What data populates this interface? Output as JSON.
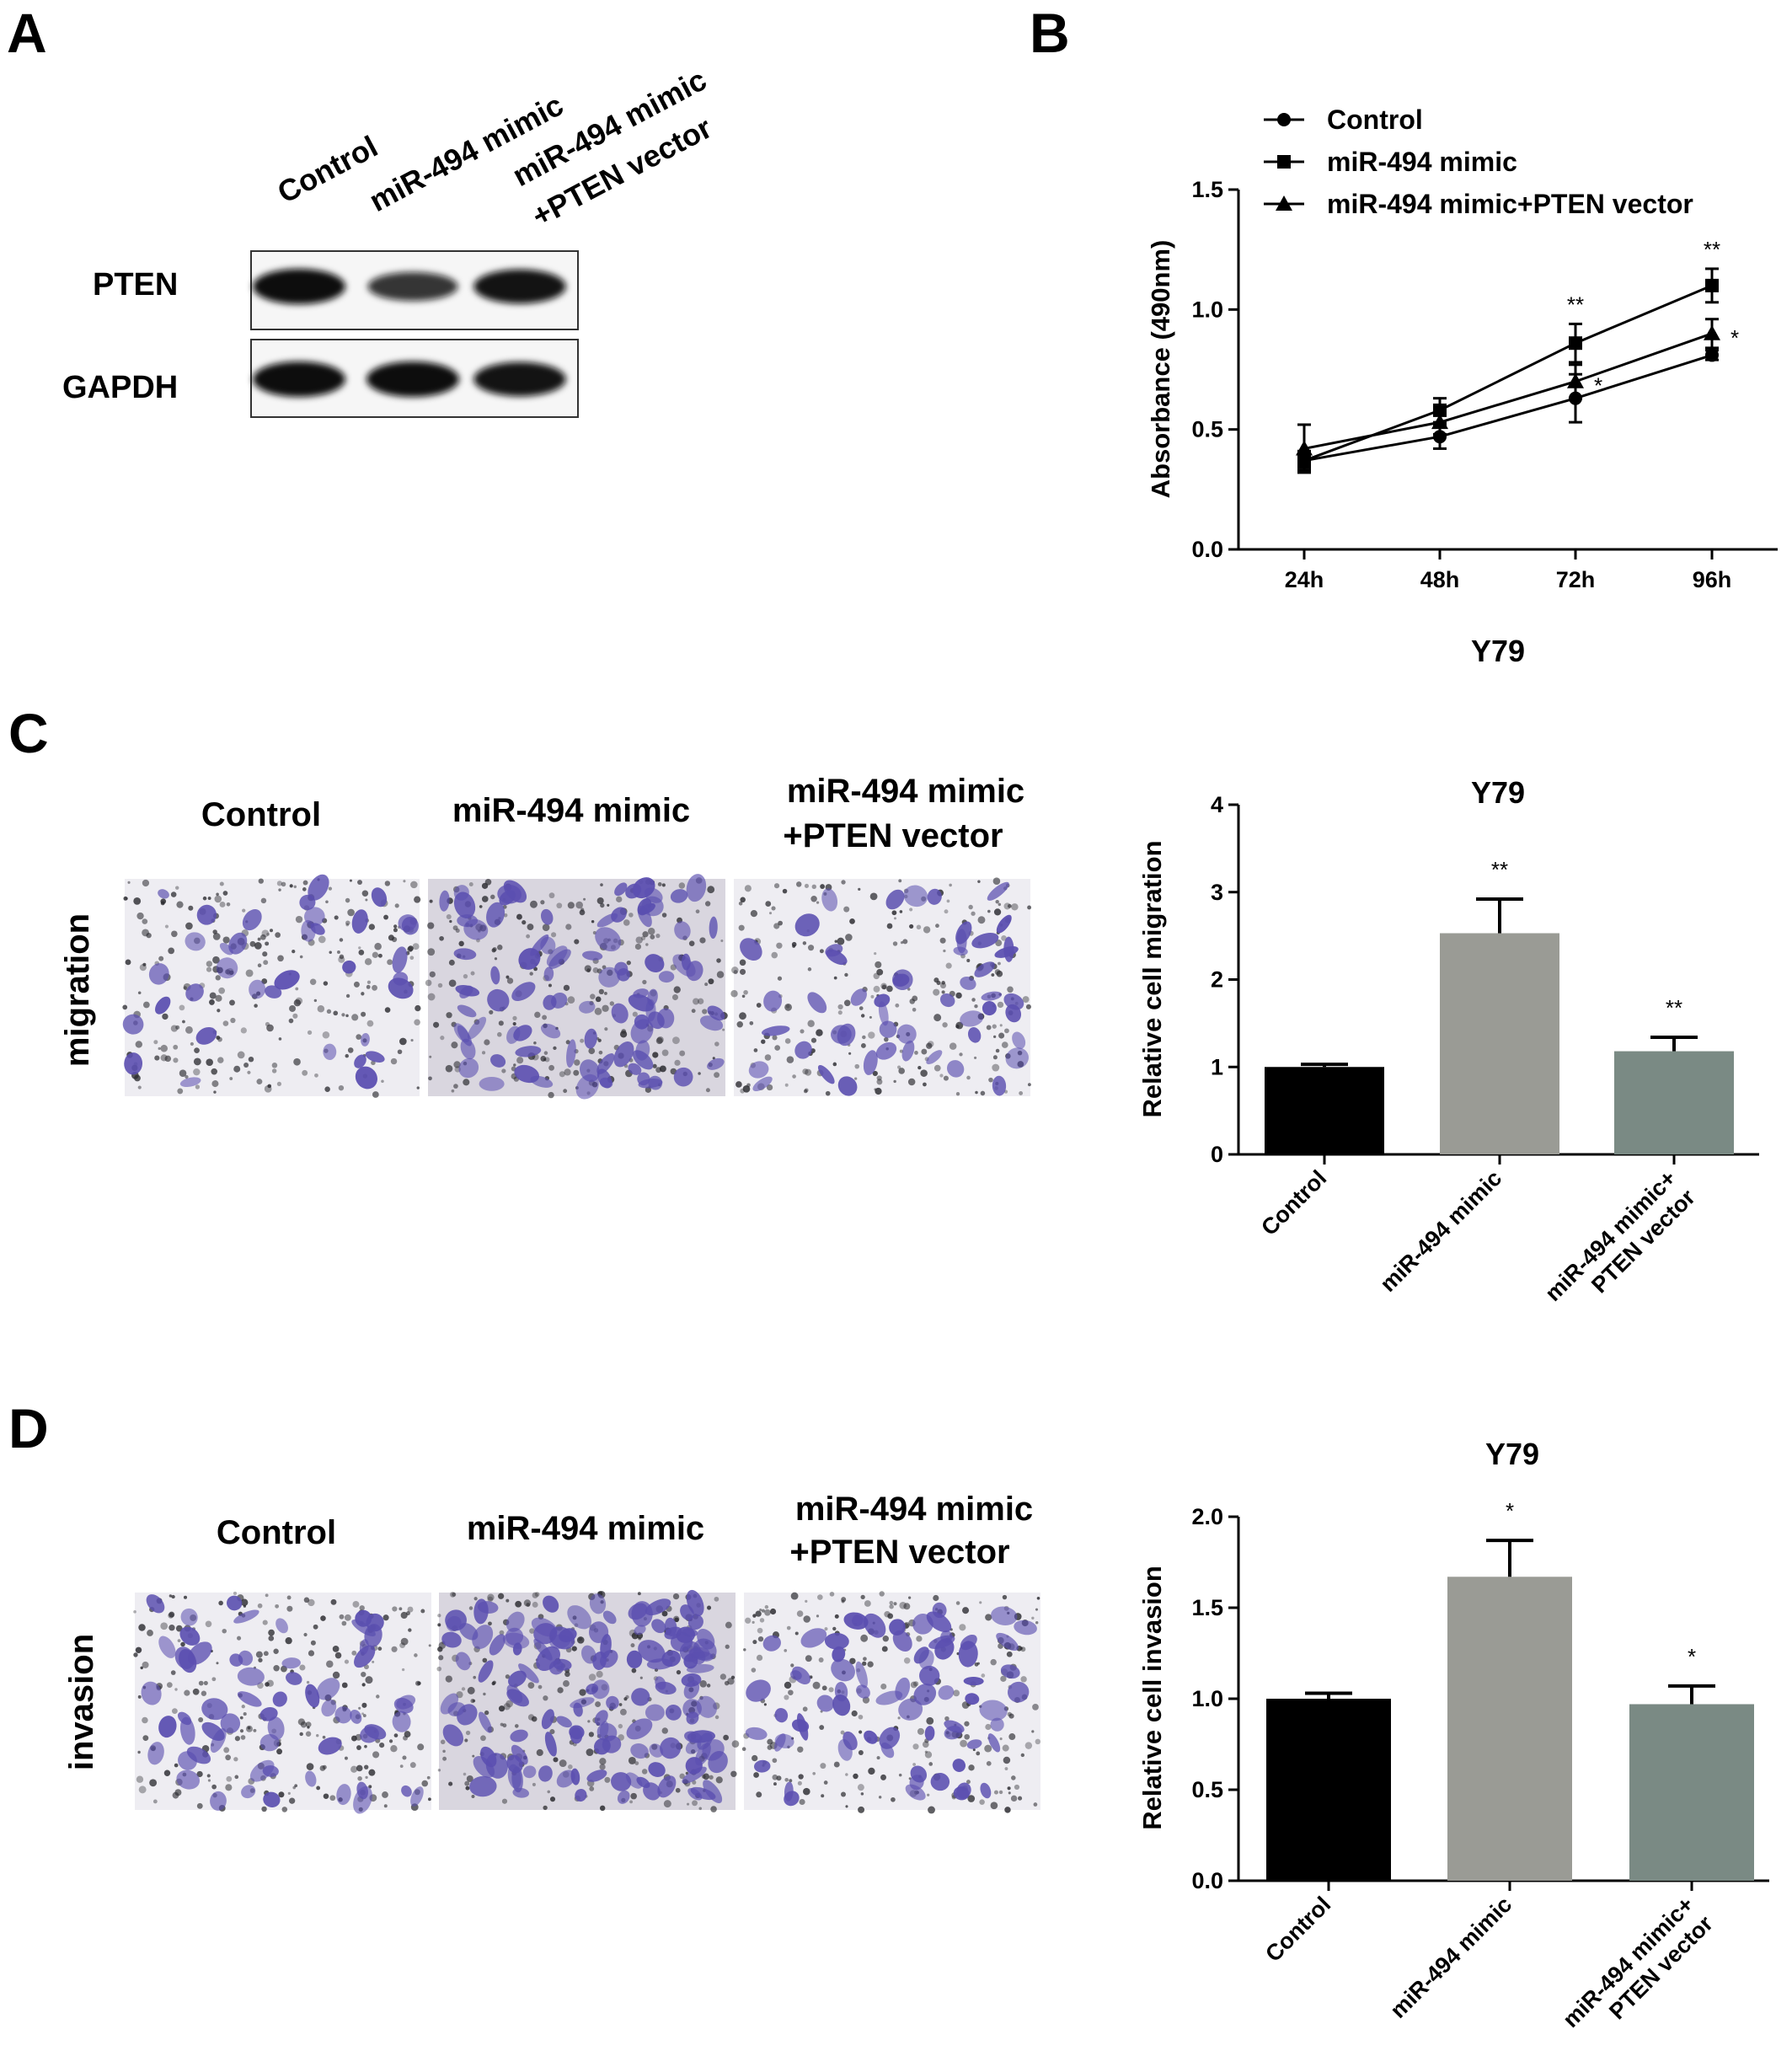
{
  "panels": {
    "a": "A",
    "b": "B",
    "c": "C",
    "d": "D"
  },
  "blot": {
    "lanes": [
      "Control",
      "miR-494 mimic",
      "miR-494 mimic",
      "+PTEN vector"
    ],
    "rows": [
      "PTEN",
      "GAPDH"
    ],
    "pten_intensity": [
      1.0,
      0.7,
      0.95
    ],
    "gapdh_intensity": [
      1.0,
      1.0,
      0.95
    ]
  },
  "migration_images": {
    "titles": [
      "Control",
      "miR-494 mimic",
      "miR-494 mimic",
      "+PTEN vector"
    ],
    "side_label": "migration"
  },
  "invasion_images": {
    "titles": [
      "Control",
      "miR-494 mimic",
      "miR-494 mimic",
      "+PTEN vector"
    ],
    "side_label": "invasion"
  },
  "colors": {
    "control_bar": "#000000",
    "mimic_bar": "#9a9b95",
    "pten_bar": "#7a8a84",
    "stain": "#5b4fb0",
    "membrane": "#eeedf2"
  },
  "chart_data": [
    {
      "type": "line",
      "panel": "B",
      "categories": [
        "24h",
        "48h",
        "72h",
        "96h"
      ],
      "xlabel": "Y79",
      "ylabel": "Absorbance (490nm)",
      "ylim": [
        0.0,
        1.5
      ],
      "yticks": [
        "0.0",
        "0.5",
        "1.0",
        "1.5"
      ],
      "legend_position": "top-left",
      "series": [
        {
          "name": "Control",
          "marker": "circle",
          "values": [
            0.37,
            0.47,
            0.63,
            0.81
          ],
          "errors": [
            0.04,
            0.05,
            0.1,
            0.02
          ],
          "annotations": [
            "",
            "",
            "",
            ""
          ]
        },
        {
          "name": "miR-494 mimic",
          "marker": "square",
          "values": [
            0.37,
            0.58,
            0.86,
            1.1
          ],
          "errors": [
            0.03,
            0.05,
            0.08,
            0.07
          ],
          "annotations": [
            "",
            "",
            "**",
            "**"
          ]
        },
        {
          "name": "miR-494 mimic+PTEN vector",
          "marker": "triangle",
          "values": [
            0.42,
            0.53,
            0.7,
            0.9
          ],
          "errors": [
            0.1,
            0.05,
            0.07,
            0.06
          ],
          "annotations": [
            "",
            "",
            "*",
            "*"
          ]
        }
      ]
    },
    {
      "type": "bar",
      "panel": "C",
      "title": "Y79",
      "ylabel": "Relative cell migration",
      "categories": [
        "Control",
        "miR-494 mimic",
        "miR-494 mimic+\nPTEN vector"
      ],
      "values": [
        1.0,
        2.53,
        1.18
      ],
      "errors": [
        0.03,
        0.39,
        0.16
      ],
      "annotations": [
        "",
        "**",
        "**"
      ],
      "ylim": [
        0,
        4
      ],
      "yticks": [
        "0",
        "1",
        "2",
        "3",
        "4"
      ]
    },
    {
      "type": "bar",
      "panel": "D",
      "title": "Y79",
      "ylabel": "Relative cell invasion",
      "categories": [
        "Control",
        "miR-494 mimic",
        "miR-494 mimic+\nPTEN vector"
      ],
      "values": [
        1.0,
        1.67,
        0.97
      ],
      "errors": [
        0.03,
        0.2,
        0.1
      ],
      "annotations": [
        "",
        "*",
        "*"
      ],
      "ylim": [
        0.0,
        2.0
      ],
      "yticks": [
        "0.0",
        "0.5",
        "1.0",
        "1.5",
        "2.0"
      ]
    }
  ]
}
